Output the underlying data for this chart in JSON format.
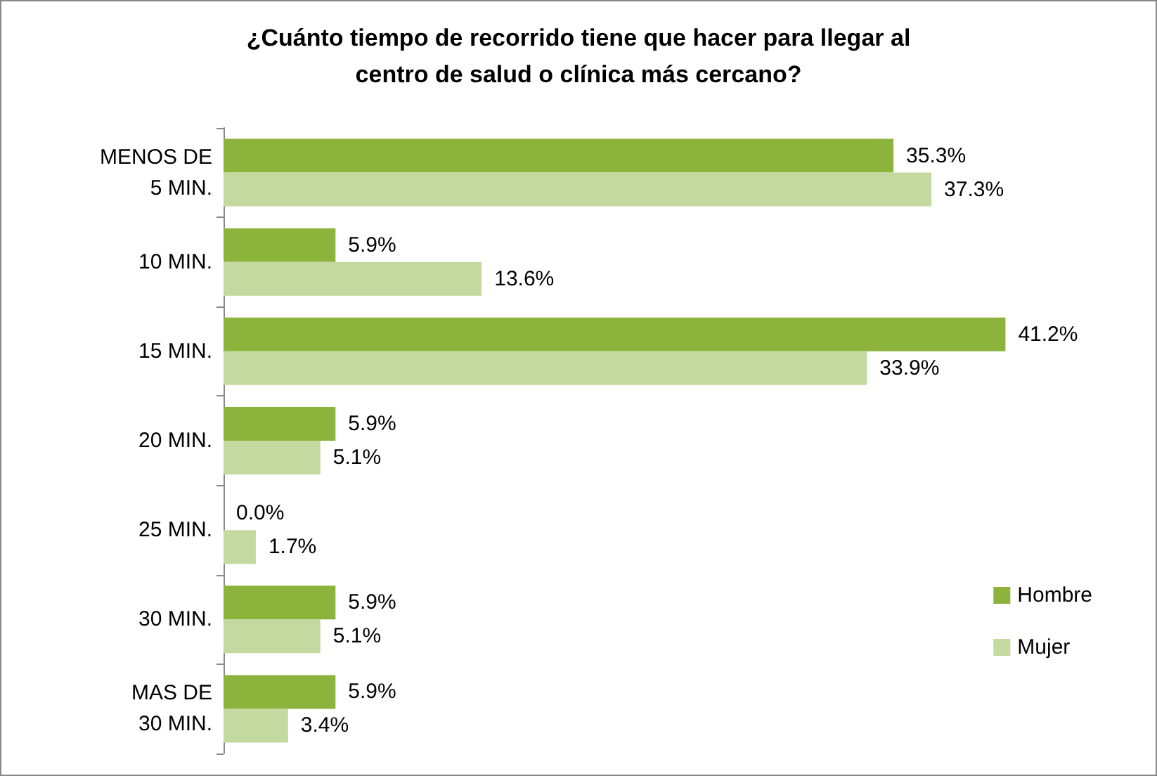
{
  "chart_data": {
    "type": "bar",
    "orientation": "horizontal",
    "title": "¿Cuánto tiempo de recorrido tiene que hacer para llegar al\ncentro de salud o clínica más cercano?",
    "categories": [
      "MENOS DE\n5 MIN.",
      "10 MIN.",
      "15 MIN.",
      "20 MIN.",
      "25 MIN.",
      "30 MIN.",
      "MAS DE\n30 MIN."
    ],
    "series": [
      {
        "name": "Hombre",
        "color": "#8cb33c",
        "values": [
          35.3,
          5.9,
          41.2,
          5.9,
          0.0,
          5.9,
          5.9
        ],
        "value_labels": [
          "35.3%",
          "5.9%",
          "41.2%",
          "5.9%",
          "0.0%",
          "5.9%",
          "5.9%"
        ]
      },
      {
        "name": "Mujer",
        "color": "#c3d9a0",
        "values": [
          37.3,
          13.6,
          33.9,
          5.1,
          1.7,
          5.1,
          3.4
        ],
        "value_labels": [
          "37.3%",
          "13.6%",
          "33.9%",
          "5.1%",
          "1.7%",
          "5.1%",
          "3.4%"
        ]
      }
    ],
    "legend": "right"
  }
}
